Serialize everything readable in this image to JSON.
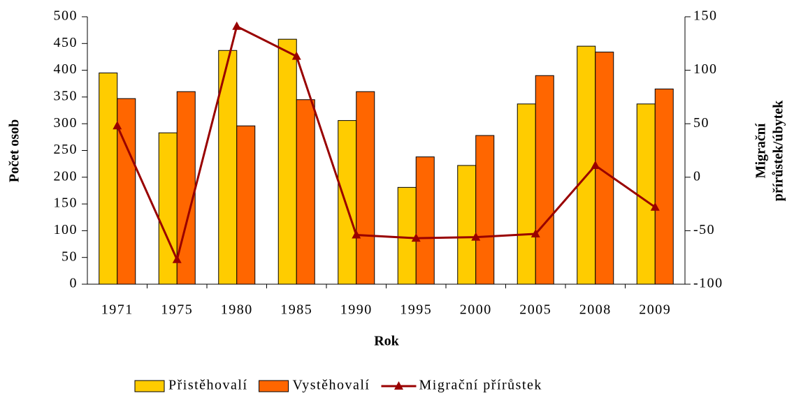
{
  "chart_data": {
    "type": "bar_line",
    "xlabel": "Rok",
    "ylabel": "Počet osob",
    "y2label": [
      "Migrační",
      "přírůstek/úbytek"
    ],
    "categories": [
      "1971",
      "1975",
      "1980",
      "1985",
      "1990",
      "1995",
      "2000",
      "2005",
      "2008",
      "2009"
    ],
    "series": [
      {
        "name": "Přistěhovalí",
        "type": "bar",
        "color": "#ffcc00",
        "values": [
          395,
          283,
          437,
          458,
          306,
          181,
          222,
          337,
          445,
          337
        ]
      },
      {
        "name": "Vystěhovalí",
        "type": "bar",
        "color": "#ff6600",
        "values": [
          347,
          360,
          296,
          345,
          360,
          238,
          278,
          390,
          434,
          365
        ]
      },
      {
        "name": "Migrační přírůstek",
        "type": "line",
        "axis": "y2",
        "color": "#990000",
        "values": [
          48,
          -77,
          141,
          113,
          -54,
          -57,
          -56,
          -53,
          11,
          -28
        ]
      }
    ],
    "ylim": [
      0,
      500
    ],
    "yticks": [
      0,
      50,
      100,
      150,
      200,
      250,
      300,
      350,
      400,
      450,
      500
    ],
    "y2lim": [
      -100,
      150
    ],
    "y2ticks": [
      -100,
      -50,
      0,
      50,
      100,
      150
    ],
    "legend": "bottom"
  }
}
